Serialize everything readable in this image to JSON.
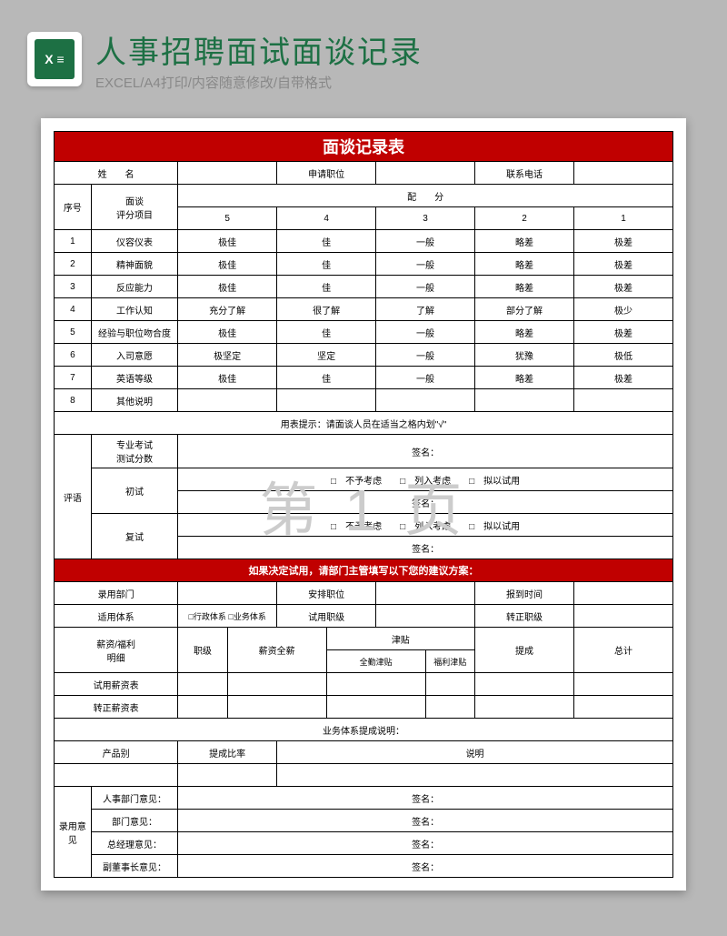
{
  "header": {
    "title": "人事招聘面试面谈记录",
    "subtitle": "EXCEL/A4打印/内容随意修改/自带格式",
    "icon_label": "X ≡"
  },
  "form": {
    "title": "面谈记录表",
    "row1": {
      "name_lbl": "姓　　名",
      "pos_lbl": "申请职位",
      "phone_lbl": "联系电话"
    },
    "row2": {
      "seq": "序号",
      "item": "面谈\n评分项目",
      "score_lbl": "配　　分",
      "s5": "5",
      "s4": "4",
      "s3": "3",
      "s2": "2",
      "s1": "1"
    },
    "scores": [
      {
        "n": "1",
        "item": "仪容仪表",
        "v": [
          "极佳",
          "佳",
          "一般",
          "略差",
          "极差"
        ]
      },
      {
        "n": "2",
        "item": "精神面貌",
        "v": [
          "极佳",
          "佳",
          "一般",
          "略差",
          "极差"
        ]
      },
      {
        "n": "3",
        "item": "反应能力",
        "v": [
          "极佳",
          "佳",
          "一般",
          "略差",
          "极差"
        ]
      },
      {
        "n": "4",
        "item": "工作认知",
        "v": [
          "充分了解",
          "很了解",
          "了解",
          "部分了解",
          "极少"
        ]
      },
      {
        "n": "5",
        "item": "经验与职位吻合度",
        "v": [
          "极佳",
          "佳",
          "一般",
          "略差",
          "极差"
        ]
      },
      {
        "n": "6",
        "item": "入司意愿",
        "v": [
          "极坚定",
          "坚定",
          "一般",
          "犹豫",
          "极低"
        ]
      },
      {
        "n": "7",
        "item": "英语等级",
        "v": [
          "极佳",
          "佳",
          "一般",
          "略差",
          "极差"
        ]
      },
      {
        "n": "8",
        "item": "其他说明",
        "v": [
          "",
          "",
          "",
          "",
          ""
        ]
      }
    ],
    "tip": "用表提示：请面谈人员在适当之格内划\"√\"",
    "eval": {
      "label": "评语",
      "test": "专业考试\n测试分数",
      "first": "初试",
      "second": "复试",
      "opts": "□　不予考虑　　□　列入考虑　　□　拟以试用",
      "sign": "签名："
    },
    "plan_title": "如果决定试用，请部门主管填写以下您的建议方案：",
    "plan": {
      "dept": "录用部门",
      "pos": "安排职位",
      "time": "报到时间",
      "sys": "适用体系",
      "sys_opt": "□行政体系 □业务体系",
      "trial_lvl": "试用职级",
      "conv_lvl": "转正职级",
      "salary": "薪资/福利\n明细",
      "level": "职级",
      "full": "薪资全薪",
      "allow": "津贴",
      "allow1": "全勤津贴",
      "allow2": "福利津贴",
      "bonus": "提成",
      "total": "总计",
      "trial_tbl": "试用薪资表",
      "conv_tbl": "转正薪资表",
      "biz": "业务体系提成说明：",
      "prod": "产品别",
      "rate": "提成比率",
      "desc": "说明"
    },
    "opinions": {
      "label": "录用意见",
      "hr": "人事部门意见：",
      "dept": "部门意见：",
      "gm": "总经理意见：",
      "vp": "副董事长意见：",
      "sign": "签名："
    }
  },
  "watermark": "第 1 页",
  "colors": {
    "header_red": "#c00000",
    "title_green": "#1d7044",
    "bg": "#b8b8b8"
  }
}
